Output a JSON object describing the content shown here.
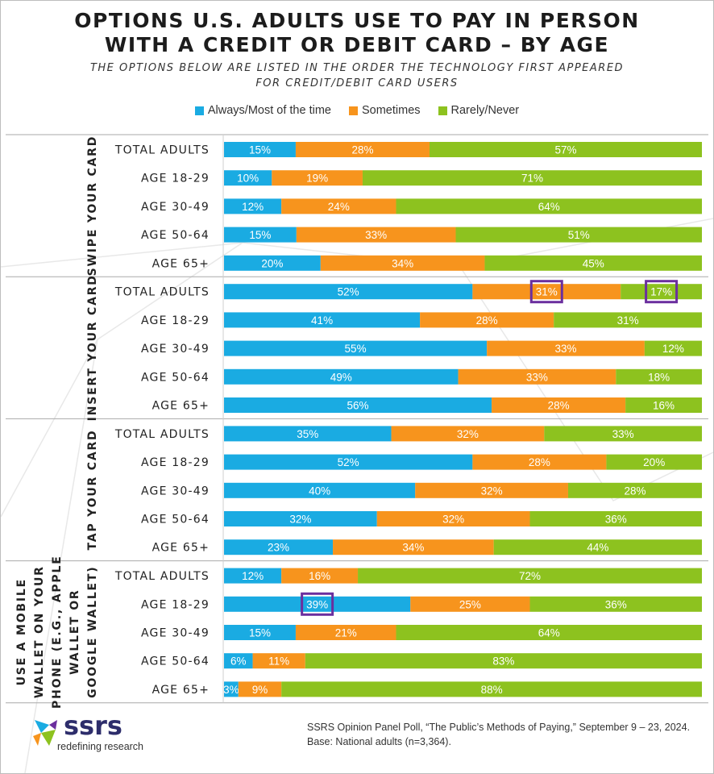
{
  "title_line1": "OPTIONS U.S. ADULTS USE TO PAY IN PERSON",
  "title_line2": "WITH A CREDIT OR DEBIT CARD – BY AGE",
  "subtitle_line1": "THE OPTIONS BELOW ARE LISTED IN THE ORDER THE TECHNOLOGY FIRST APPEARED",
  "subtitle_line2": "FOR CREDIT/DEBIT CARD USERS",
  "legend": [
    {
      "label": "Always/Most of the time",
      "color": "#1aabe2"
    },
    {
      "label": "Sometimes",
      "color": "#f7941d"
    },
    {
      "label": "Rarely/Never",
      "color": "#8dc21f"
    }
  ],
  "chart_data": {
    "type": "bar",
    "orientation": "horizontal",
    "stacked": true,
    "xlim": [
      0,
      100
    ],
    "series_names": [
      "Always/Most of the time",
      "Sometimes",
      "Rarely/Never"
    ],
    "groups": [
      {
        "category_lines": [
          "SWIPE YOUR CARD"
        ],
        "rows": [
          {
            "label": "TOTAL ADULTS",
            "values": [
              15,
              28,
              57
            ]
          },
          {
            "label": "AGE 18-29",
            "values": [
              10,
              19,
              71
            ]
          },
          {
            "label": "AGE 30-49",
            "values": [
              12,
              24,
              64
            ]
          },
          {
            "label": "AGE 50-64",
            "values": [
              15,
              33,
              51
            ]
          },
          {
            "label": "AGE 65+",
            "values": [
              20,
              34,
              45
            ]
          }
        ]
      },
      {
        "category_lines": [
          "INSERT YOUR CARD"
        ],
        "rows": [
          {
            "label": "TOTAL ADULTS",
            "values": [
              52,
              31,
              17
            ],
            "highlight": [
              1,
              2
            ]
          },
          {
            "label": "AGE 18-29",
            "values": [
              41,
              28,
              31
            ]
          },
          {
            "label": "AGE 30-49",
            "values": [
              55,
              33,
              12
            ]
          },
          {
            "label": "AGE 50-64",
            "values": [
              49,
              33,
              18
            ]
          },
          {
            "label": "AGE 65+",
            "values": [
              56,
              28,
              16
            ]
          }
        ]
      },
      {
        "category_lines": [
          "TAP YOUR CARD"
        ],
        "rows": [
          {
            "label": "TOTAL ADULTS",
            "values": [
              35,
              32,
              33
            ]
          },
          {
            "label": "AGE 18-29",
            "values": [
              52,
              28,
              20
            ]
          },
          {
            "label": "AGE 30-49",
            "values": [
              40,
              32,
              28
            ]
          },
          {
            "label": "AGE 50-64",
            "values": [
              32,
              32,
              36
            ]
          },
          {
            "label": "AGE 65+",
            "values": [
              23,
              34,
              44
            ]
          }
        ]
      },
      {
        "category_lines": [
          "USE A MOBILE",
          "WALLET ON YOUR",
          "PHONE (E.G., APPLE",
          "WALLET OR",
          "GOOGLE WALLET)"
        ],
        "rows": [
          {
            "label": "TOTAL ADULTS",
            "values": [
              12,
              16,
              72
            ]
          },
          {
            "label": "AGE 18-29",
            "values": [
              39,
              25,
              36
            ],
            "highlight": [
              0
            ]
          },
          {
            "label": "AGE 30-49",
            "values": [
              15,
              21,
              64
            ]
          },
          {
            "label": "AGE 50-64",
            "values": [
              6,
              11,
              83
            ]
          },
          {
            "label": "AGE 65+",
            "values": [
              3,
              9,
              88
            ]
          }
        ]
      }
    ],
    "highlight_color": "#6b2f9e"
  },
  "logo": {
    "name": "ssrs",
    "tagline": "redefining research"
  },
  "source_line1": "SSRS Opinion Panel Poll, “The Public’s Methods of Paying,” September 9 – 23, 2024.",
  "source_line2": "Base: National adults (n=3,364)."
}
